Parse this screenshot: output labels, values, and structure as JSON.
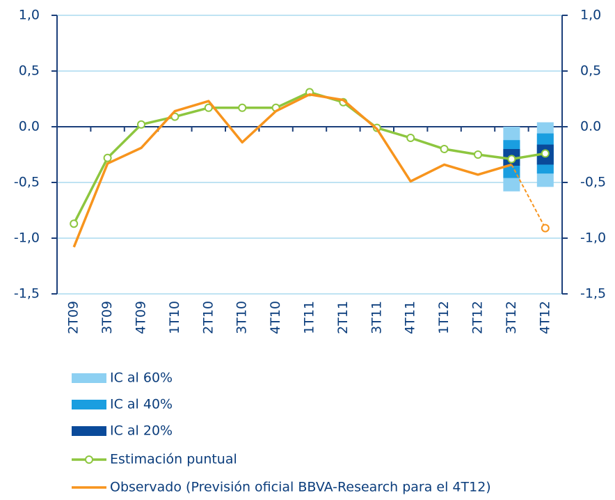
{
  "chart_data": {
    "type": "line",
    "categories": [
      "2T09",
      "3T09",
      "4T09",
      "1T10",
      "2T10",
      "3T10",
      "4T10",
      "1T11",
      "2T11",
      "3T11",
      "4T11",
      "1T12",
      "2T12",
      "3T12",
      "4T12"
    ],
    "ylim": [
      -1.5,
      1.0
    ],
    "yticks": [
      {
        "value": 1.0,
        "label": "1,0"
      },
      {
        "value": 0.5,
        "label": "0,5"
      },
      {
        "value": 0.0,
        "label": "0.0"
      },
      {
        "value": -0.5,
        "label": "-0,5"
      },
      {
        "value": -1.0,
        "label": "-1,0"
      },
      {
        "value": -1.5,
        "label": "-1,5"
      }
    ],
    "y2lim": [
      -1.5,
      1.0
    ],
    "y2ticks": [
      {
        "value": 1.0,
        "label": "1,0"
      },
      {
        "value": 0.5,
        "label": "0,5"
      },
      {
        "value": 0.0,
        "label": "0.0"
      },
      {
        "value": -0.5,
        "label": "-0,5"
      },
      {
        "value": -1.0,
        "label": "-1,0"
      },
      {
        "value": -1.5,
        "label": "-1,5"
      }
    ],
    "grid": true,
    "series": [
      {
        "name": "IC al 60%",
        "type": "band",
        "color": "#8dd0f2",
        "low": [
          null,
          null,
          null,
          null,
          null,
          null,
          null,
          null,
          null,
          null,
          null,
          null,
          null,
          -0.58,
          -0.54
        ],
        "high": [
          null,
          null,
          null,
          null,
          null,
          null,
          null,
          null,
          null,
          null,
          null,
          null,
          null,
          0.0,
          0.04
        ]
      },
      {
        "name": "IC al 40%",
        "type": "band",
        "color": "#1a9ee0",
        "low": [
          null,
          null,
          null,
          null,
          null,
          null,
          null,
          null,
          null,
          null,
          null,
          null,
          null,
          -0.46,
          -0.42
        ],
        "high": [
          null,
          null,
          null,
          null,
          null,
          null,
          null,
          null,
          null,
          null,
          null,
          null,
          null,
          -0.12,
          -0.06
        ]
      },
      {
        "name": "IC al 20%",
        "type": "band",
        "color": "#0a4a9a",
        "low": [
          null,
          null,
          null,
          null,
          null,
          null,
          null,
          null,
          null,
          null,
          null,
          null,
          null,
          -0.35,
          -0.34
        ],
        "high": [
          null,
          null,
          null,
          null,
          null,
          null,
          null,
          null,
          null,
          null,
          null,
          null,
          null,
          -0.2,
          -0.16
        ]
      },
      {
        "name": "Estimación puntual",
        "type": "line",
        "color": "#8dc63f",
        "markers": true,
        "values": [
          -0.87,
          -0.28,
          0.02,
          0.09,
          0.17,
          0.17,
          0.17,
          0.31,
          0.22,
          -0.01,
          -0.1,
          -0.2,
          -0.25,
          -0.29,
          -0.24
        ]
      },
      {
        "name": "Observado (Previsión oficial BBVA-Research para el 4T12)",
        "type": "line",
        "color": "#f7941d",
        "last_segment": "dashed",
        "values": [
          -1.08,
          -0.33,
          -0.19,
          0.14,
          0.23,
          -0.14,
          0.14,
          0.29,
          0.24,
          -0.02,
          -0.49,
          -0.34,
          -0.43,
          -0.34,
          -0.91
        ]
      }
    ]
  }
}
